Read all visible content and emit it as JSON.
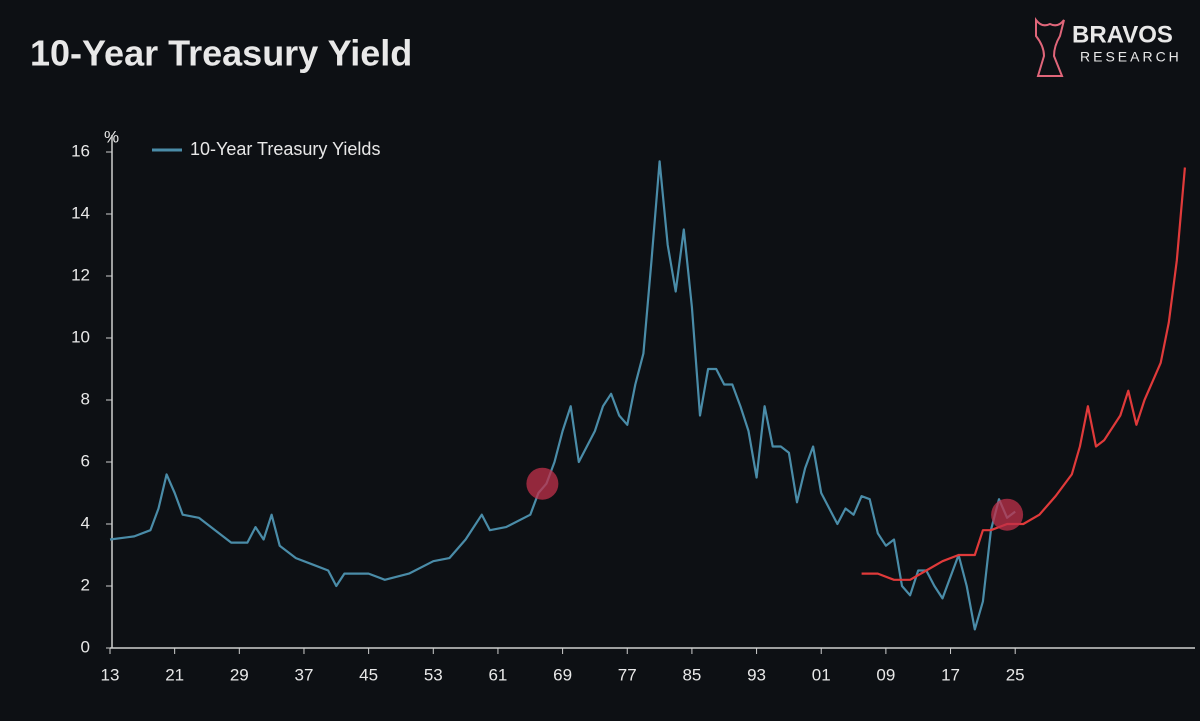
{
  "chart_data": {
    "type": "line",
    "title": "10-Year Treasury Yield",
    "y_label": "%",
    "logo": {
      "name": "BRAVOS",
      "sub": "RESEARCH"
    },
    "xlim": [
      1913,
      2047
    ],
    "ylim": [
      0,
      16
    ],
    "yticks": [
      0,
      2,
      4,
      6,
      8,
      10,
      12,
      14,
      16
    ],
    "xticks": [
      {
        "value": 1913,
        "label": "13"
      },
      {
        "value": 1921,
        "label": "21"
      },
      {
        "value": 1929,
        "label": "29"
      },
      {
        "value": 1937,
        "label": "37"
      },
      {
        "value": 1945,
        "label": "45"
      },
      {
        "value": 1953,
        "label": "53"
      },
      {
        "value": 1961,
        "label": "61"
      },
      {
        "value": 1969,
        "label": "69"
      },
      {
        "value": 1977,
        "label": "77"
      },
      {
        "value": 1985,
        "label": "85"
      },
      {
        "value": 1993,
        "label": "93"
      },
      {
        "value": 2001,
        "label": "01"
      },
      {
        "value": 2009,
        "label": "09"
      },
      {
        "value": 2017,
        "label": "17"
      },
      {
        "value": 2025,
        "label": "25"
      }
    ],
    "legend": "top-left",
    "series": [
      {
        "name": "10-Year Treasury Yields",
        "color": "#4a8ca8",
        "x": [
          1913,
          1916,
          1918,
          1919,
          1920,
          1921,
          1922,
          1924,
          1926,
          1928,
          1930,
          1931,
          1932,
          1933,
          1934,
          1936,
          1938,
          1940,
          1941,
          1942,
          1945,
          1947,
          1950,
          1953,
          1955,
          1957,
          1959,
          1960,
          1962,
          1965,
          1966,
          1967,
          1968,
          1969,
          1970,
          1971,
          1973,
          1974,
          1975,
          1976,
          1977,
          1978,
          1979,
          1980,
          1981,
          1982,
          1983,
          1984,
          1985,
          1986,
          1987,
          1988,
          1989,
          1990,
          1991,
          1992,
          1993,
          1994,
          1995,
          1996,
          1997,
          1998,
          1999,
          2000,
          2001,
          2002,
          2003,
          2004,
          2005,
          2006,
          2007,
          2008,
          2009,
          2010,
          2011,
          2012,
          2013,
          2014,
          2015,
          2016,
          2017,
          2018,
          2019,
          2020,
          2021,
          2022,
          2023,
          2024,
          2025
        ],
        "values": [
          3.5,
          3.6,
          3.8,
          4.5,
          5.6,
          5.0,
          4.3,
          4.2,
          3.8,
          3.4,
          3.4,
          3.9,
          3.5,
          4.3,
          3.3,
          2.9,
          2.7,
          2.5,
          2.0,
          2.4,
          2.4,
          2.2,
          2.4,
          2.8,
          2.9,
          3.5,
          4.3,
          3.8,
          3.9,
          4.3,
          5.0,
          5.3,
          6.0,
          7.0,
          7.8,
          6.0,
          7.0,
          7.8,
          8.2,
          7.5,
          7.2,
          8.5,
          9.5,
          12.5,
          15.7,
          13.0,
          11.5,
          13.5,
          11.0,
          7.5,
          9.0,
          9.0,
          8.5,
          8.5,
          7.8,
          7.0,
          5.5,
          7.8,
          6.5,
          6.5,
          6.3,
          4.7,
          5.8,
          6.5,
          5.0,
          4.5,
          4.0,
          4.5,
          4.3,
          4.9,
          4.8,
          3.7,
          3.3,
          3.5,
          2.0,
          1.7,
          2.5,
          2.5,
          2.0,
          1.6,
          2.3,
          3.0,
          2.0,
          0.6,
          1.5,
          3.8,
          4.8,
          4.2,
          4.4
        ]
      },
      {
        "color": "#e03a3a",
        "x": [
          2006,
          2008,
          2010,
          2012,
          2014,
          2016,
          2018,
          2020,
          2021,
          2022,
          2024,
          2026,
          2028,
          2030,
          2032,
          2033,
          2034,
          2035,
          2036,
          2038,
          2039,
          2040,
          2041,
          2042,
          2043,
          2044,
          2045,
          2046
        ],
        "values": [
          2.4,
          2.4,
          2.2,
          2.2,
          2.5,
          2.8,
          3.0,
          3.0,
          3.8,
          3.8,
          4.0,
          4.0,
          4.3,
          4.9,
          5.6,
          6.5,
          7.8,
          6.5,
          6.7,
          7.5,
          8.3,
          7.2,
          8.0,
          8.6,
          9.2,
          10.5,
          12.5,
          15.5
        ]
      }
    ],
    "highlights": {
      "color": "#c0304a",
      "x": [
        1966.5,
        2024
      ],
      "values": [
        5.3,
        4.3
      ]
    }
  }
}
